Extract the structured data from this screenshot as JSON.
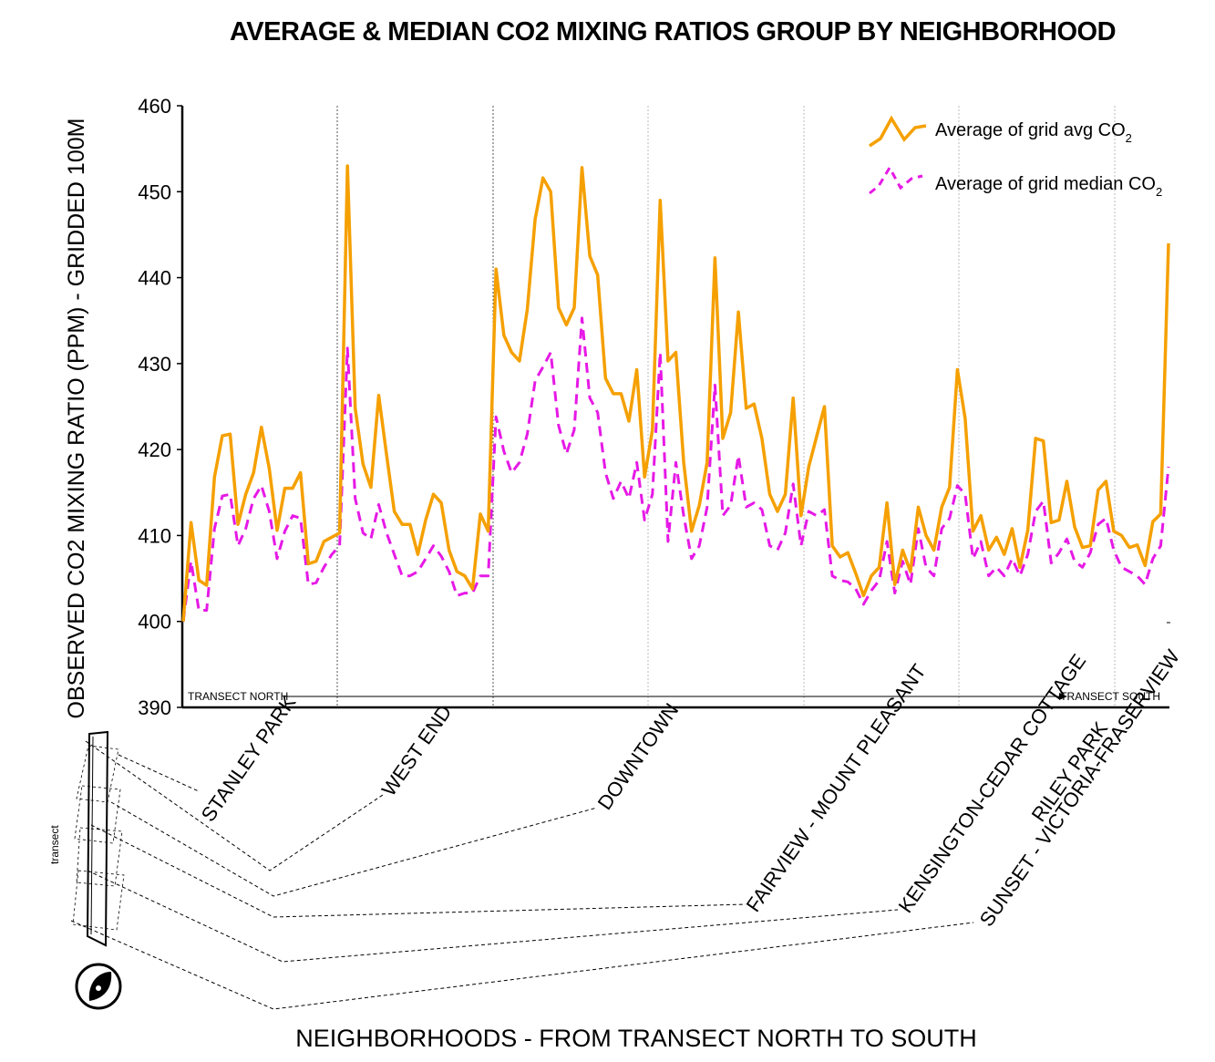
{
  "chart_data": {
    "type": "line",
    "title": "AVERAGE & MEDIAN CO2 MIXING RATIOS GROUP BY NEIGHBORHOOD",
    "ylabel": "OBSERVED CO2 MIXING RATIO (PPM) - GRIDDED 100M",
    "xlabel": "NEIGHBORHOODS - FROM TRANSECT NORTH TO SOUTH",
    "ylim": [
      390,
      460
    ],
    "yticks": [
      "390",
      "400",
      "410",
      "420",
      "430",
      "440",
      "450",
      "460"
    ],
    "transect_start": "TRANSECT NORTH",
    "transect_end": "TRANSECT SOUTH",
    "neighborhoods": [
      "STANLEY PARK",
      "WEST END",
      "DOWNTOWN",
      "FAIRVIEW - MOUNT PLEASANT",
      "KENSINGTON-CEDAR COTTAGE",
      "RILEY PARK",
      "SUNSET - VICTORIA-FRASERVIEW"
    ],
    "inset_label": "transect",
    "legend_position": "top-right",
    "grid": false,
    "series": [
      {
        "name": "Average of grid avg CO",
        "name_subscript": "2",
        "color": "#f5a000",
        "dash": "solid",
        "values": [
          400.0,
          411.5,
          404.8,
          404.2,
          416.8,
          421.6,
          421.8,
          411.3,
          414.8,
          417.3,
          422.6,
          417.8,
          410.6,
          415.5,
          415.5,
          417.3,
          406.7,
          407.0,
          409.3,
          409.8,
          410.3,
          453.0,
          424.8,
          418.3,
          415.6,
          426.3,
          419.4,
          412.8,
          411.3,
          411.3,
          407.8,
          411.8,
          414.8,
          413.8,
          408.3,
          405.8,
          405.3,
          403.8,
          412.5,
          410.5,
          441.0,
          433.3,
          431.3,
          430.3,
          436.3,
          446.8,
          451.6,
          450.0,
          436.5,
          434.5,
          436.5,
          452.8,
          442.5,
          440.3,
          428.3,
          426.5,
          426.5,
          423.3,
          429.3,
          416.8,
          422.3,
          449.0,
          430.3,
          431.3,
          418.5,
          410.5,
          413.5,
          418.5,
          442.3,
          421.3,
          424.3,
          436.0,
          424.8,
          425.3,
          421.3,
          414.8,
          412.8,
          414.8,
          426.0,
          412.3,
          418.0,
          421.5,
          425.0,
          408.8,
          407.5,
          408.0,
          405.6,
          403.0,
          405.3,
          406.3,
          413.8,
          404.3,
          408.3,
          405.8,
          413.3,
          410.0,
          408.3,
          413.3,
          415.6,
          429.3,
          423.6,
          410.5,
          412.3,
          408.3,
          409.8,
          407.8,
          410.8,
          406.3,
          410.6,
          421.3,
          421.0,
          411.5,
          411.8,
          416.3,
          411.0,
          408.6,
          408.8,
          415.3,
          416.3,
          410.5,
          410.0,
          408.6,
          408.9,
          406.5,
          411.6,
          412.5,
          444.0
        ]
      },
      {
        "name": "Average of grid median CO",
        "name_subscript": "2",
        "color": "#e619e6",
        "dash": "dashed",
        "values": [
          400.0,
          407.0,
          401.3,
          401.3,
          410.8,
          414.6,
          414.8,
          408.8,
          410.8,
          414.3,
          415.8,
          412.8,
          407.3,
          410.5,
          412.3,
          412.0,
          404.3,
          404.5,
          406.3,
          407.8,
          408.8,
          431.8,
          414.3,
          410.3,
          409.6,
          413.6,
          410.3,
          407.8,
          405.3,
          405.3,
          405.8,
          407.3,
          408.8,
          407.6,
          405.8,
          403.0,
          403.3,
          403.3,
          405.3,
          405.3,
          423.8,
          419.8,
          417.3,
          418.5,
          421.8,
          428.0,
          429.6,
          431.3,
          422.8,
          419.5,
          422.3,
          435.3,
          426.0,
          424.3,
          417.3,
          414.3,
          416.3,
          414.3,
          418.5,
          411.8,
          414.8,
          431.3,
          409.3,
          418.5,
          412.3,
          407.3,
          408.8,
          413.3,
          427.5,
          412.3,
          413.5,
          419.3,
          413.3,
          413.8,
          413.0,
          408.8,
          408.3,
          410.3,
          416.0,
          408.8,
          412.8,
          412.3,
          413.0,
          405.3,
          404.8,
          404.6,
          403.8,
          402.0,
          403.6,
          404.8,
          409.3,
          403.3,
          407.0,
          404.3,
          410.8,
          406.3,
          405.3,
          410.8,
          412.0,
          415.8,
          414.8,
          407.3,
          409.3,
          405.3,
          406.3,
          405.3,
          407.3,
          405.3,
          407.8,
          412.8,
          414.0,
          406.8,
          408.0,
          409.6,
          407.0,
          406.3,
          408.0,
          411.3,
          412.0,
          408.3,
          406.3,
          405.8,
          405.3,
          404.3,
          407.3,
          408.8,
          418.0
        ]
      }
    ]
  }
}
